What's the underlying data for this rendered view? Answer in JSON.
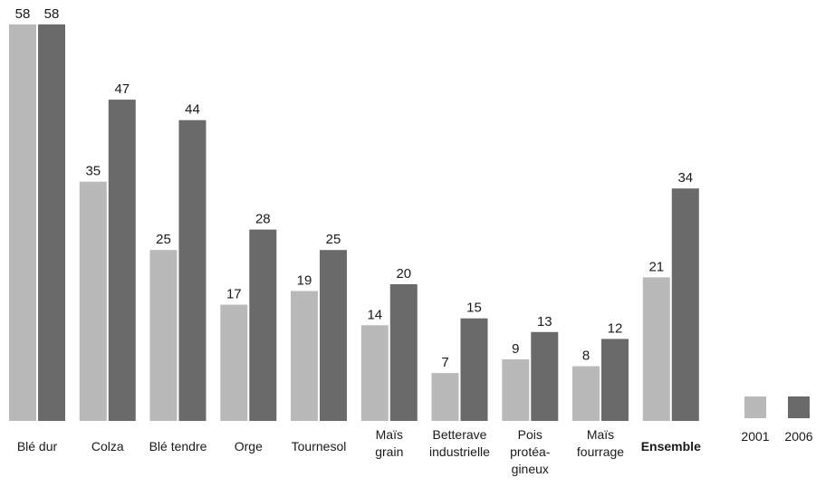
{
  "chart_data": {
    "type": "bar",
    "categories": [
      [
        "Blé dur"
      ],
      [
        "Colza"
      ],
      [
        "Blé tendre"
      ],
      [
        "Orge"
      ],
      [
        "Tournesol"
      ],
      [
        "Maïs",
        "grain"
      ],
      [
        "Betterave",
        "industrielle"
      ],
      [
        "Pois",
        "protéa-",
        "gineux"
      ],
      [
        "Maïs",
        "fourrage"
      ],
      [
        "Ensemble"
      ]
    ],
    "bold_categories": [
      9
    ],
    "series": [
      {
        "name": "2001",
        "color": "#b9b9b9",
        "values": [
          58,
          35,
          25,
          17,
          19,
          14,
          7,
          9,
          8,
          21
        ]
      },
      {
        "name": "2006",
        "color": "#6a6a6a",
        "values": [
          58,
          47,
          44,
          28,
          25,
          20,
          15,
          13,
          12,
          34
        ]
      }
    ],
    "ylim": [
      0,
      58
    ],
    "grid": false,
    "legend_position": "bottom-right"
  }
}
